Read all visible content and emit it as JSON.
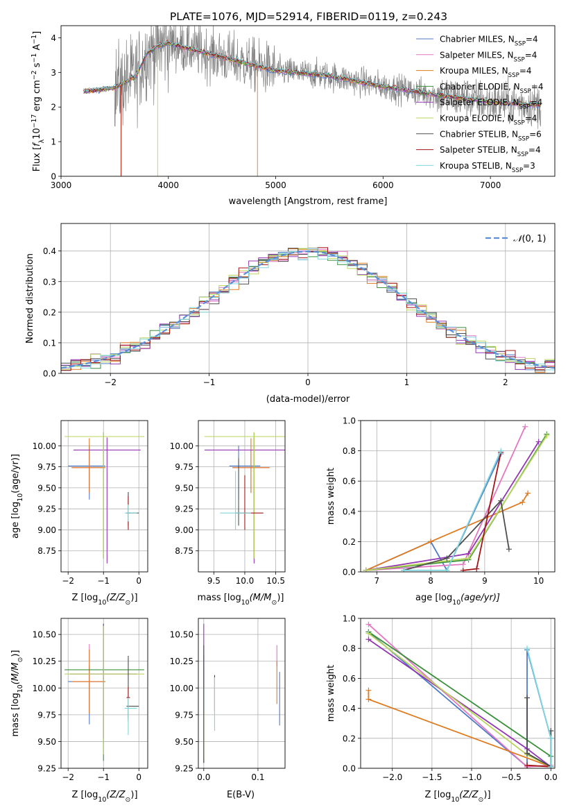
{
  "figure_title": "PLATE=1076, MJD=52914, FIBERID=0119, z=0.243",
  "colors": {
    "models": [
      "#4e79c8",
      "#e377c2",
      "#e07a1f",
      "#3a8f3a",
      "#9435b4",
      "#b9d65a",
      "#4d4d4d",
      "#a31515",
      "#7fd6de"
    ],
    "data_spectrum": "#808080",
    "normal_curve": "#5b8fd8",
    "grid": "#b0b0b0"
  },
  "chart_data": [
    {
      "id": "spectrum",
      "type": "line",
      "title": "PLATE=1076, MJD=52914, FIBERID=0119, z=0.243",
      "xlabel": "wavelength [Angstrom, rest frame]",
      "ylabel_parts": [
        "Flux [",
        "f",
        "λ",
        "10",
        "−17",
        " erg cm",
        "−2",
        " s",
        "−1",
        " A",
        "−1",
        "]"
      ],
      "xlim": [
        3000,
        7600
      ],
      "ylim": [
        0,
        4.35
      ],
      "xticks": [
        3000,
        4000,
        5000,
        6000,
        7000
      ],
      "yticks": [
        0,
        1,
        2,
        3,
        4
      ],
      "grid": false,
      "legend_position": "right",
      "data_range": [
        3210,
        7470
      ],
      "continuum": [
        [
          3210,
          2.45
        ],
        [
          3500,
          2.55
        ],
        [
          3700,
          2.9
        ],
        [
          3800,
          3.55
        ],
        [
          3900,
          3.75
        ],
        [
          4000,
          3.85
        ],
        [
          4300,
          3.6
        ],
        [
          4800,
          3.2
        ],
        [
          5000,
          3.05
        ],
        [
          5500,
          2.9
        ],
        [
          6000,
          2.6
        ],
        [
          6500,
          2.35
        ],
        [
          7000,
          2.15
        ],
        [
          7470,
          2.05
        ]
      ],
      "series": [
        {
          "name_parts": [
            "Chabrier MILES, N",
            "SSP",
            "=4"
          ]
        },
        {
          "name_parts": [
            "Salpeter MILES, N",
            "SSP",
            "=4"
          ]
        },
        {
          "name_parts": [
            "Kroupa MILES, N",
            "SSP",
            "=4"
          ]
        },
        {
          "name_parts": [
            "Chabrier ELODIE, N",
            "SSP",
            "=4"
          ]
        },
        {
          "name_parts": [
            "Salpeter ELODIE, N",
            "SSP",
            "=4"
          ]
        },
        {
          "name_parts": [
            "Kroupa ELODIE, N",
            "SSP",
            "=4"
          ]
        },
        {
          "name_parts": [
            "Chabrier STELIB, N",
            "SSP",
            "=6"
          ]
        },
        {
          "name_parts": [
            "Salpeter STELIB, N",
            "SSP",
            "=4"
          ]
        },
        {
          "name_parts": [
            "Kroupa STELIB, N",
            "SSP",
            "=3"
          ]
        }
      ]
    },
    {
      "id": "residuals",
      "type": "histogram",
      "xlabel": "(data-model)/error",
      "ylabel": "Normed distribution",
      "xlim": [
        -2.5,
        2.5
      ],
      "ylim": [
        0,
        0.49
      ],
      "xticks": [
        -2,
        -1,
        0,
        1,
        2
      ],
      "yticks": [
        0.0,
        0.1,
        0.2,
        0.3,
        0.4
      ],
      "grid": true,
      "legend_position": "top-right",
      "legend": {
        "label_parts": [
          "𝒩",
          "(0, 1)"
        ]
      },
      "bin_width": 0.1
    },
    {
      "id": "age-vs-Z",
      "type": "errorbar",
      "xlabel_parts": [
        "Z [log",
        "10",
        "(Z/Z",
        "⊙",
        ")]"
      ],
      "ylabel_parts": [
        "age  [log",
        "10",
        "(age/yr)]"
      ],
      "xlim": [
        -2.2,
        0.25
      ],
      "ylim": [
        8.5,
        10.3
      ],
      "xticks": [
        -2,
        -1,
        0
      ],
      "yticks": [
        8.75,
        9.0,
        9.25,
        9.5,
        9.75,
        10.0
      ],
      "grid": true,
      "points": [
        {
          "series": 0,
          "x": -1.4,
          "xerr": [
            0.6,
            0.45
          ],
          "y": 9.76,
          "yerr": [
            0.4,
            0.24
          ]
        },
        {
          "series": 1,
          "x": -1.4,
          "xerr": [
            0.5,
            0.45
          ],
          "y": 9.74,
          "yerr": [
            0.3,
            0.2
          ]
        },
        {
          "series": 2,
          "x": -1.4,
          "xerr": [
            0.5,
            0.45
          ],
          "y": 9.74,
          "yerr": [
            0.3,
            0.35
          ]
        },
        {
          "series": 3,
          "x": -1.0,
          "xerr": [
            1.1,
            1.15
          ],
          "y": 10.11,
          "yerr": [
            1.45,
            0.05
          ]
        },
        {
          "series": 4,
          "x": -0.9,
          "xerr": [
            0.95,
            0.95
          ],
          "y": 9.95,
          "yerr": [
            1.35,
            0.15
          ]
        },
        {
          "series": 5,
          "x": -1.0,
          "xerr": [
            1.1,
            1.15
          ],
          "y": 10.11,
          "yerr": [
            1.45,
            0.05
          ]
        },
        {
          "series": 6,
          "x": -0.3,
          "xerr": [
            0.05,
            0.3
          ],
          "y": 9.2,
          "yerr": [
            0.15,
            0.25
          ]
        },
        {
          "series": 7,
          "x": -0.3,
          "xerr": [
            0.05,
            0.05
          ],
          "y": 9.2,
          "yerr": [
            0.2,
            0.2
          ]
        },
        {
          "series": 8,
          "x": -0.3,
          "xerr": [
            0.1,
            0.25
          ],
          "y": 9.2,
          "yerr": [
            0.1,
            0.1
          ]
        }
      ]
    },
    {
      "id": "age-vs-mass",
      "type": "errorbar",
      "xlabel_parts": [
        "mass [log",
        "10",
        "(M/M",
        "⊙",
        ")]"
      ],
      "xlim": [
        9.25,
        10.65
      ],
      "ylim": [
        8.5,
        10.3
      ],
      "xticks": [
        9.5,
        10.0,
        10.5
      ],
      "yticks": [
        8.75,
        9.0,
        9.25,
        9.5,
        9.75,
        10.0
      ],
      "grid": true,
      "points": [
        {
          "series": 0,
          "x": 9.9,
          "xerr": [
            0.15,
            0.35
          ],
          "y": 9.76,
          "yerr": [
            0.4,
            0.24
          ]
        },
        {
          "series": 1,
          "x": 10.1,
          "xerr": [
            0.3,
            0.3
          ],
          "y": 9.74,
          "yerr": [
            0.3,
            0.2
          ]
        },
        {
          "series": 2,
          "x": 10.1,
          "xerr": [
            0.3,
            0.3
          ],
          "y": 9.74,
          "yerr": [
            0.3,
            0.35
          ]
        },
        {
          "series": 3,
          "x": 10.15,
          "xerr": [
            0.8,
            0.5
          ],
          "y": 10.11,
          "yerr": [
            1.45,
            0.05
          ]
        },
        {
          "series": 4,
          "x": 10.15,
          "xerr": [
            0.8,
            0.5
          ],
          "y": 9.95,
          "yerr": [
            1.35,
            0.15
          ]
        },
        {
          "series": 5,
          "x": 10.15,
          "xerr": [
            0.8,
            0.5
          ],
          "y": 10.11,
          "yerr": [
            1.45,
            0.05
          ]
        },
        {
          "series": 6,
          "x": 9.9,
          "xerr": [
            0.05,
            0.05
          ],
          "y": 9.2,
          "yerr": [
            0.15,
            0.65
          ]
        },
        {
          "series": 7,
          "x": 10.0,
          "xerr": [
            0.05,
            0.3
          ],
          "y": 9.2,
          "yerr": [
            0.2,
            0.45
          ]
        },
        {
          "series": 8,
          "x": 9.85,
          "xerr": [
            0.25,
            0.25
          ],
          "y": 9.2,
          "yerr": [
            0.2,
            0.5
          ]
        }
      ]
    },
    {
      "id": "weight-vs-age",
      "type": "line",
      "xlabel_parts": [
        "age  [log",
        "10",
        "(age/yr)]"
      ],
      "ylabel": "mass weight",
      "xlim": [
        6.7,
        10.3
      ],
      "ylim": [
        0,
        1.0
      ],
      "xticks": [
        7,
        8,
        9,
        10
      ],
      "yticks": [
        0.0,
        0.2,
        0.4,
        0.6,
        0.8,
        1.0
      ],
      "grid": true,
      "series": [
        {
          "series": 0,
          "x": [
            6.8,
            8.0,
            8.3,
            9.3
          ],
          "y": [
            0.01,
            0.2,
            0.01,
            0.78
          ]
        },
        {
          "series": 1,
          "x": [
            6.8,
            8.6,
            9.75
          ],
          "y": [
            0.01,
            0.05,
            0.96
          ]
        },
        {
          "series": 2,
          "x": [
            6.8,
            8.0,
            9.7,
            9.8
          ],
          "y": [
            0.01,
            0.2,
            0.46,
            0.52
          ]
        },
        {
          "series": 3,
          "x": [
            6.8,
            8.7,
            10.15
          ],
          "y": [
            0.01,
            0.08,
            0.91
          ]
        },
        {
          "series": 4,
          "x": [
            6.8,
            8.7,
            10.0
          ],
          "y": [
            0.01,
            0.12,
            0.86
          ]
        },
        {
          "series": 5,
          "x": [
            6.8,
            8.7,
            10.15
          ],
          "y": [
            0.01,
            0.09,
            0.9
          ]
        },
        {
          "series": 6,
          "x": [
            7.5,
            8.3,
            9.3,
            9.45
          ],
          "y": [
            0.01,
            0.09,
            0.47,
            0.15
          ]
        },
        {
          "series": 7,
          "x": [
            8.6,
            8.85,
            9.3
          ],
          "y": [
            0.01,
            0.02,
            0.79
          ]
        },
        {
          "series": 8,
          "x": [
            7.5,
            8.3,
            9.3
          ],
          "y": [
            0.01,
            0.01,
            0.8
          ]
        }
      ]
    },
    {
      "id": "mass-vs-Z",
      "type": "errorbar",
      "xlabel_parts": [
        "Z [log",
        "10",
        "(Z/Z",
        "⊙",
        ")]"
      ],
      "ylabel_parts": [
        "mass [log",
        "10",
        "(M/M",
        "⊙",
        ")]"
      ],
      "xlim": [
        -2.2,
        0.25
      ],
      "ylim": [
        9.25,
        10.65
      ],
      "xticks": [
        -2,
        -1,
        0
      ],
      "yticks": [
        9.25,
        9.5,
        9.75,
        10.0,
        10.25,
        10.5
      ],
      "grid": true,
      "points": [
        {
          "series": 0,
          "x": -1.4,
          "xerr": [
            0.6,
            0.45
          ],
          "y": 10.06,
          "yerr": [
            0.4,
            0.15
          ]
        },
        {
          "series": 1,
          "x": -1.4,
          "xerr": [
            0.5,
            0.45
          ],
          "y": 10.06,
          "yerr": [
            0.3,
            0.35
          ]
        },
        {
          "series": 2,
          "x": -1.4,
          "xerr": [
            0.5,
            0.45
          ],
          "y": 10.06,
          "yerr": [
            0.3,
            0.3
          ]
        },
        {
          "series": 3,
          "x": -1.0,
          "xerr": [
            1.1,
            1.15
          ],
          "y": 10.17,
          "yerr": [
            0.85,
            0.43
          ]
        },
        {
          "series": 4,
          "x": -1.0,
          "xerr": [
            0.95,
            0.95
          ],
          "y": 10.13,
          "yerr": [
            0.6,
            0.47
          ]
        },
        {
          "series": 5,
          "x": -1.0,
          "xerr": [
            1.1,
            1.15
          ],
          "y": 10.13,
          "yerr": [
            0.75,
            0.45
          ]
        },
        {
          "series": 6,
          "x": -0.3,
          "xerr": [
            0.05,
            0.3
          ],
          "y": 9.83,
          "yerr": [
            0.15,
            0.47
          ]
        },
        {
          "series": 7,
          "x": -0.3,
          "xerr": [
            0.05,
            0.05
          ],
          "y": 9.91,
          "yerr": [
            0.2,
            0.1
          ]
        },
        {
          "series": 8,
          "x": -0.3,
          "xerr": [
            0.1,
            0.25
          ],
          "y": 9.81,
          "yerr": [
            0.25,
            0.1
          ]
        }
      ]
    },
    {
      "id": "mass-vs-ebv",
      "type": "errorbar",
      "xlabel": "E(B-V)",
      "xlim": [
        -0.01,
        0.15
      ],
      "ylim": [
        9.25,
        10.65
      ],
      "xticks": [
        0.0,
        0.1
      ],
      "yticks": [
        9.25,
        9.5,
        9.75,
        10.0,
        10.25,
        10.5
      ],
      "grid": true,
      "points": [
        {
          "series": 0,
          "x": 0.14,
          "xerr": [
            0,
            0
          ],
          "y": 9.9,
          "yerr": [
            0.25,
            0.25
          ]
        },
        {
          "series": 1,
          "x": 0.135,
          "xerr": [
            0,
            0
          ],
          "y": 10.3,
          "yerr": [
            0.1,
            0.1
          ]
        },
        {
          "series": 2,
          "x": 0.135,
          "xerr": [
            0,
            0
          ],
          "y": 10.05,
          "yerr": [
            0.2,
            0.2
          ]
        },
        {
          "series": 3,
          "x": 0.0,
          "xerr": [
            0,
            0
          ],
          "y": 9.8,
          "yerr": [
            0.5,
            0.5
          ]
        },
        {
          "series": 4,
          "x": 0.0,
          "xerr": [
            0,
            0
          ],
          "y": 10.3,
          "yerr": [
            0.3,
            0.3
          ]
        },
        {
          "series": 5,
          "x": 0.0,
          "xerr": [
            0,
            0
          ],
          "y": 9.55,
          "yerr": [
            0.2,
            0.2
          ]
        },
        {
          "series": 6,
          "x": 0.0,
          "xerr": [
            0,
            0
          ],
          "y": 9.85,
          "yerr": [
            0.55,
            0.55
          ]
        },
        {
          "series": 7,
          "x": 0.02,
          "xerr": [
            0,
            0
          ],
          "y": 9.95,
          "yerr": [
            0.17,
            0.17
          ]
        },
        {
          "series": 8,
          "x": 0.02,
          "xerr": [
            0,
            0
          ],
          "y": 9.85,
          "yerr": [
            0.25,
            0.25
          ]
        }
      ]
    },
    {
      "id": "weight-vs-Z",
      "type": "line",
      "xlabel_parts": [
        "Z [log",
        "10",
        "(Z/Z",
        "⊙",
        ")]"
      ],
      "ylabel": "mass weight",
      "xlim": [
        -2.4,
        0.05
      ],
      "ylim": [
        0,
        1.0
      ],
      "xticks": [
        -2.0,
        -1.5,
        -1.0,
        -0.5,
        0.0
      ],
      "yticks": [
        0.0,
        0.2,
        0.4,
        0.6,
        0.8,
        1.0
      ],
      "grid": true,
      "series": [
        {
          "series": 0,
          "x": [
            -2.3,
            -0.3,
            -0.3,
            0.0,
            0.0
          ],
          "y": [
            0.91,
            0.01,
            0.79,
            0.2,
            0.01
          ]
        },
        {
          "series": 1,
          "x": [
            -2.3,
            -0.3,
            0.0
          ],
          "y": [
            0.96,
            0.01,
            0.02
          ]
        },
        {
          "series": 2,
          "x": [
            -2.3,
            -2.3,
            0.0
          ],
          "y": [
            0.52,
            0.46,
            0.01
          ]
        },
        {
          "series": 3,
          "x": [
            -2.3,
            0.0,
            0.0
          ],
          "y": [
            0.91,
            0.08,
            0.01
          ]
        },
        {
          "series": 4,
          "x": [
            -2.3,
            -0.3,
            0.0
          ],
          "y": [
            0.86,
            0.13,
            0.01
          ]
        },
        {
          "series": 5,
          "x": [
            -2.3,
            -0.3,
            0.0
          ],
          "y": [
            0.9,
            0.09,
            0.01
          ]
        },
        {
          "series": 6,
          "x": [
            -0.3,
            -0.3,
            0.0,
            0.0
          ],
          "y": [
            0.47,
            0.1,
            0.01,
            0.25
          ]
        },
        {
          "series": 7,
          "x": [
            -0.3,
            0.0
          ],
          "y": [
            0.02,
            0.01
          ]
        },
        {
          "series": 8,
          "x": [
            -0.3,
            0.0,
            0.0
          ],
          "y": [
            0.8,
            0.2,
            0.01
          ]
        }
      ]
    }
  ]
}
